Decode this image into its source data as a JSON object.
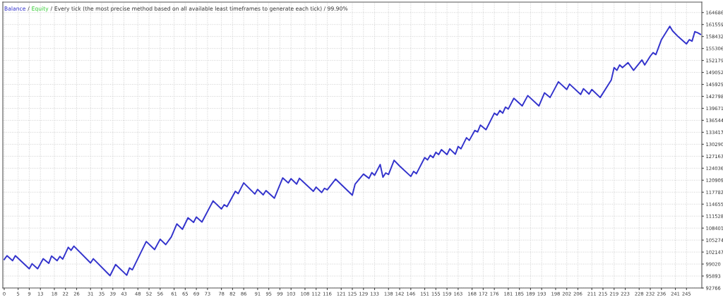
{
  "chart_data": {
    "type": "line",
    "title": "Every tick (the most precise method based on all available least timeframes to generate each tick) / 99.90%",
    "x": [
      0,
      1,
      3,
      4,
      9,
      10,
      12,
      14,
      16,
      17,
      19,
      20,
      21,
      23,
      24,
      25,
      31,
      32,
      38,
      40,
      44,
      45,
      46,
      51,
      54,
      56,
      58,
      60,
      62,
      64,
      66,
      68,
      69,
      71,
      75,
      78,
      79,
      80,
      83,
      84,
      86,
      90,
      91,
      93,
      94,
      97,
      100,
      102,
      103,
      105,
      106,
      111,
      112,
      114,
      115,
      116,
      119,
      125,
      126,
      129,
      131,
      132,
      133,
      135,
      136,
      137,
      138,
      140,
      142,
      146,
      147,
      148,
      151,
      152,
      153,
      154,
      155,
      156,
      157,
      159,
      160,
      162,
      163,
      164,
      166,
      167,
      169,
      170,
      171,
      173,
      176,
      177,
      178,
      179,
      180,
      181,
      183,
      186,
      188,
      192,
      194,
      196,
      199,
      202,
      203,
      207,
      208,
      210,
      211,
      214,
      218,
      219,
      220,
      221,
      222,
      224,
      226,
      229,
      230,
      232,
      233,
      234,
      236,
      239,
      240,
      242,
      245,
      246,
      247,
      248,
      249,
      250
    ],
    "series": [
      {
        "name": "Balance",
        "color": "#3333cc",
        "values": [
          100200,
          101200,
          99900,
          101200,
          97800,
          99100,
          97800,
          100400,
          99200,
          101100,
          99900,
          101000,
          100300,
          103400,
          102600,
          103700,
          99300,
          100400,
          96000,
          98900,
          96100,
          98000,
          97500,
          104900,
          102800,
          105500,
          104100,
          106100,
          109500,
          108100,
          111100,
          109900,
          111300,
          110000,
          115500,
          113400,
          114500,
          114000,
          118000,
          117400,
          120200,
          117300,
          118500,
          117100,
          118200,
          116200,
          121500,
          120200,
          121300,
          119900,
          121400,
          118000,
          119100,
          117700,
          118800,
          118400,
          121200,
          117000,
          119900,
          122500,
          121400,
          122900,
          122200,
          125000,
          121700,
          122800,
          122400,
          126100,
          124600,
          121900,
          123200,
          122600,
          126800,
          126200,
          127400,
          126800,
          128200,
          127600,
          128900,
          127600,
          129100,
          127700,
          129700,
          129100,
          132000,
          131300,
          133900,
          133500,
          135300,
          134100,
          138400,
          137900,
          139100,
          138400,
          140000,
          139500,
          142300,
          140300,
          143000,
          140300,
          143700,
          142500,
          146600,
          144600,
          146000,
          143300,
          144800,
          143400,
          144600,
          142500,
          147100,
          150300,
          149600,
          151000,
          150300,
          151600,
          149600,
          152300,
          151000,
          153300,
          154200,
          153700,
          157600,
          161100,
          159900,
          158400,
          156500,
          157600,
          157200,
          159700,
          159400,
          159000
        ]
      },
      {
        "name": "Equity",
        "color": "#33cc33",
        "values": [
          null,
          null,
          null,
          null,
          null,
          null,
          null,
          null,
          null,
          null,
          null,
          null,
          null,
          null,
          null,
          null,
          null,
          null,
          null,
          null,
          null,
          null,
          null,
          null,
          null,
          null,
          null,
          null,
          null,
          null,
          null,
          null,
          null,
          null,
          null,
          null,
          null,
          null,
          null,
          null,
          null,
          null,
          null,
          null,
          null,
          null,
          null,
          null,
          null,
          null,
          null,
          null,
          null,
          null,
          null,
          null,
          null,
          null,
          null,
          null,
          null,
          null,
          null,
          null,
          null,
          null,
          null,
          null,
          null,
          null,
          null,
          null,
          null,
          null,
          null,
          null,
          null,
          null,
          null,
          null,
          null,
          null,
          null,
          null,
          null,
          null,
          null,
          null,
          null,
          null,
          null,
          null,
          null,
          null,
          null,
          null,
          null,
          null,
          null,
          null,
          null,
          null,
          null,
          null,
          null,
          null,
          null,
          null,
          null,
          null,
          null,
          null,
          null,
          null,
          null,
          null,
          null,
          null,
          null,
          null,
          null,
          null,
          null,
          null,
          null,
          null,
          null,
          null,
          null,
          null,
          null,
          null
        ]
      }
    ],
    "xlim": [
      -0.5,
      250.5
    ],
    "xticks": [
      0,
      5,
      9,
      13,
      18,
      22,
      26,
      31,
      35,
      39,
      43,
      48,
      52,
      56,
      61,
      65,
      69,
      73,
      78,
      82,
      86,
      91,
      95,
      99,
      103,
      108,
      112,
      116,
      121,
      125,
      129,
      133,
      138,
      142,
      146,
      151,
      155,
      159,
      163,
      168,
      172,
      176,
      181,
      185,
      189,
      193,
      198,
      202,
      206,
      211,
      215,
      219,
      223,
      228,
      232,
      236,
      241,
      245
    ],
    "ylim": [
      92766,
      167400
    ],
    "yticks": [
      92766,
      95893,
      99020,
      102147,
      105274,
      108401,
      111528,
      114655,
      117782,
      120909,
      124036,
      127163,
      130290,
      133417,
      136544,
      139671,
      142798,
      145925,
      149052,
      152179,
      155306,
      158432,
      161559,
      164686
    ],
    "annotations": [
      "/",
      "/"
    ],
    "grid": true,
    "legend": "top left",
    "marker": "none",
    "line_style": "solid"
  }
}
